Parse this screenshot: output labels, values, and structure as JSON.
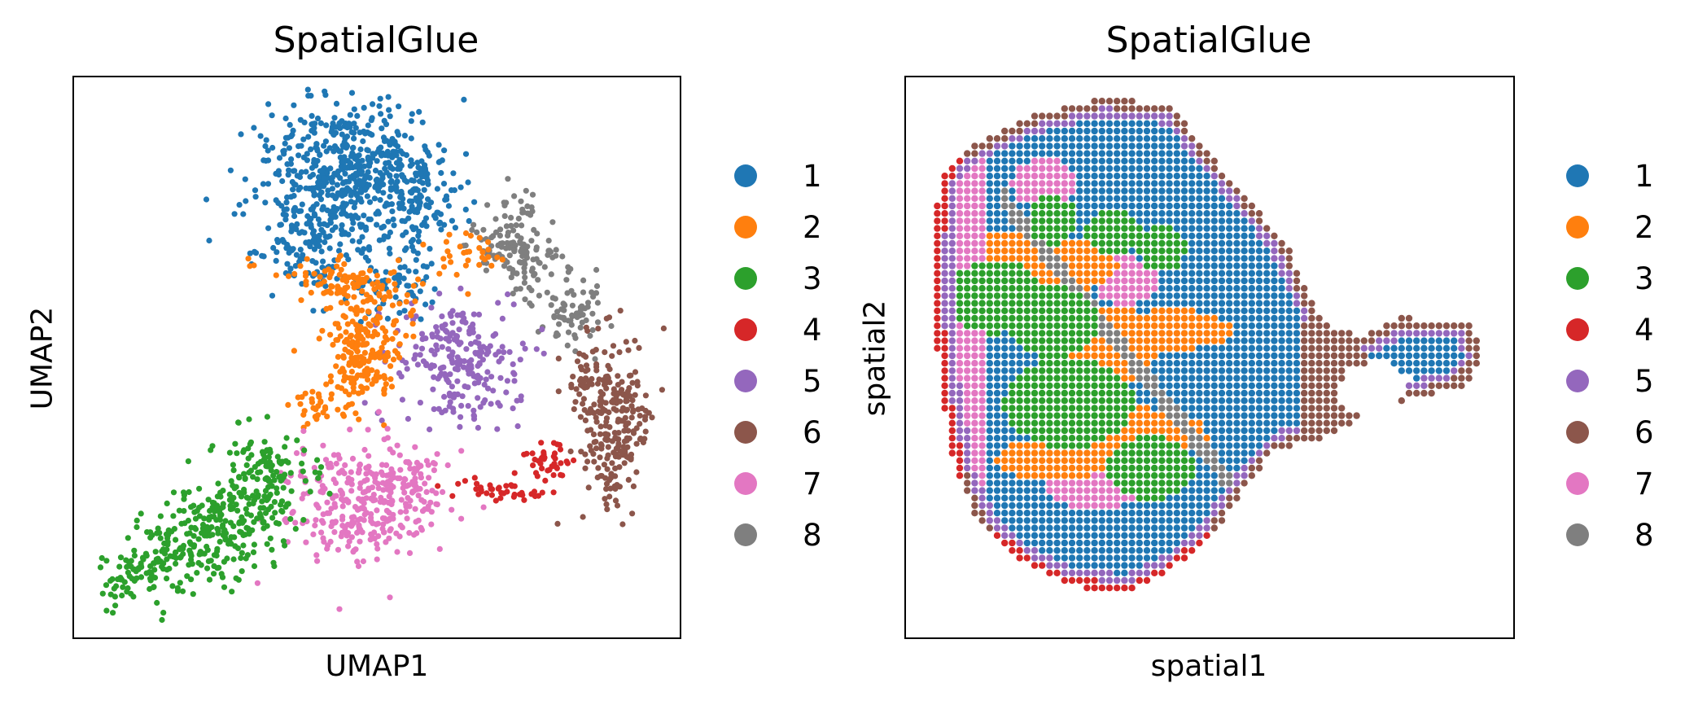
{
  "chart_data": [
    {
      "type": "scatter",
      "title": "SpatialGlue",
      "xlabel": "UMAP1",
      "ylabel": "UMAP2",
      "grid": false,
      "ticks": false,
      "legend": "right",
      "series": [
        {
          "name": "1",
          "color": "#1f77b4"
        },
        {
          "name": "2",
          "color": "#ff7f0e"
        },
        {
          "name": "3",
          "color": "#2ca02c"
        },
        {
          "name": "4",
          "color": "#d62728"
        },
        {
          "name": "5",
          "color": "#9467bd"
        },
        {
          "name": "6",
          "color": "#8c564b"
        },
        {
          "name": "7",
          "color": "#e377c2"
        },
        {
          "name": "8",
          "color": "#7f7f7f"
        }
      ]
    },
    {
      "type": "scatter",
      "title": "SpatialGlue",
      "xlabel": "spatial1",
      "ylabel": "spatial2",
      "grid": false,
      "ticks": false,
      "legend": "right",
      "series": [
        {
          "name": "1",
          "color": "#1f77b4"
        },
        {
          "name": "2",
          "color": "#ff7f0e"
        },
        {
          "name": "3",
          "color": "#2ca02c"
        },
        {
          "name": "4",
          "color": "#d62728"
        },
        {
          "name": "5",
          "color": "#9467bd"
        },
        {
          "name": "6",
          "color": "#8c564b"
        },
        {
          "name": "7",
          "color": "#e377c2"
        },
        {
          "name": "8",
          "color": "#7f7f7f"
        }
      ]
    }
  ]
}
